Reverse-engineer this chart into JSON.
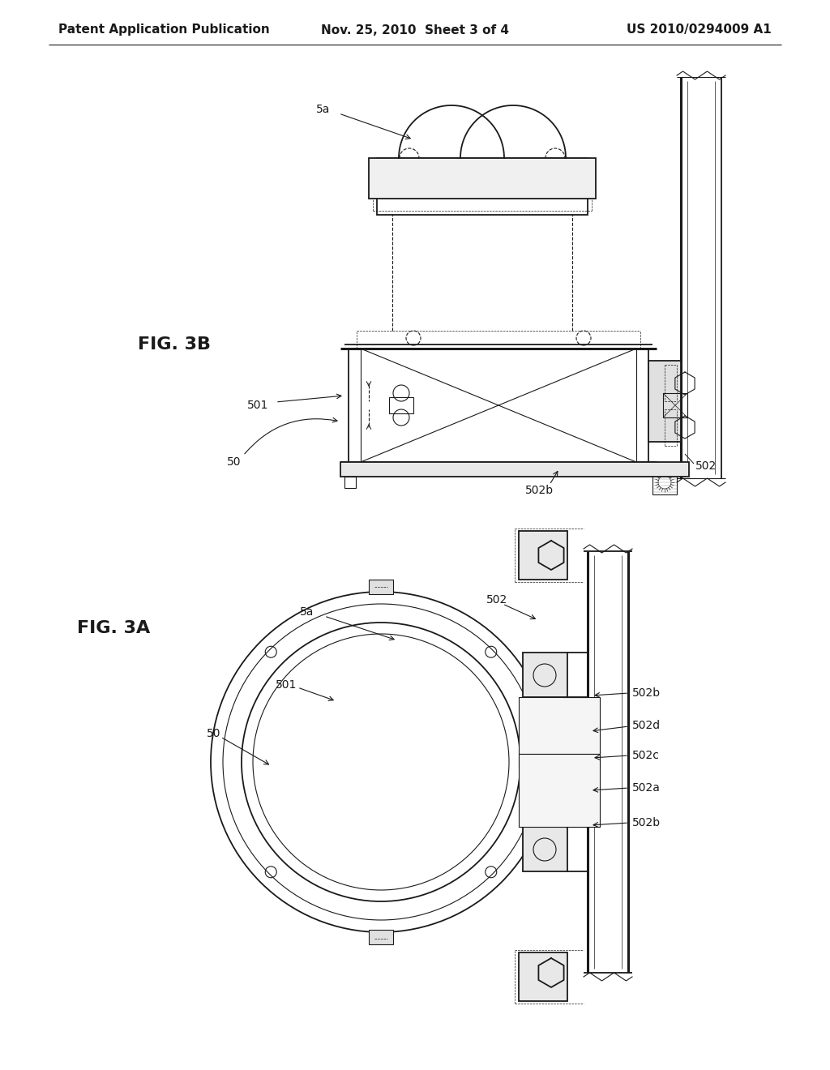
{
  "background_color": "#ffffff",
  "header_left": "Patent Application Publication",
  "header_center": "Nov. 25, 2010  Sheet 3 of 4",
  "header_right": "US 2010/0294009 A1",
  "fig3b_label": "FIG. 3B",
  "fig3a_label": "FIG. 3A",
  "line_color": "#1a1a1a",
  "text_color": "#1a1a1a",
  "header_fontsize": 11,
  "label_fontsize": 10,
  "fig_label_fontsize": 16
}
